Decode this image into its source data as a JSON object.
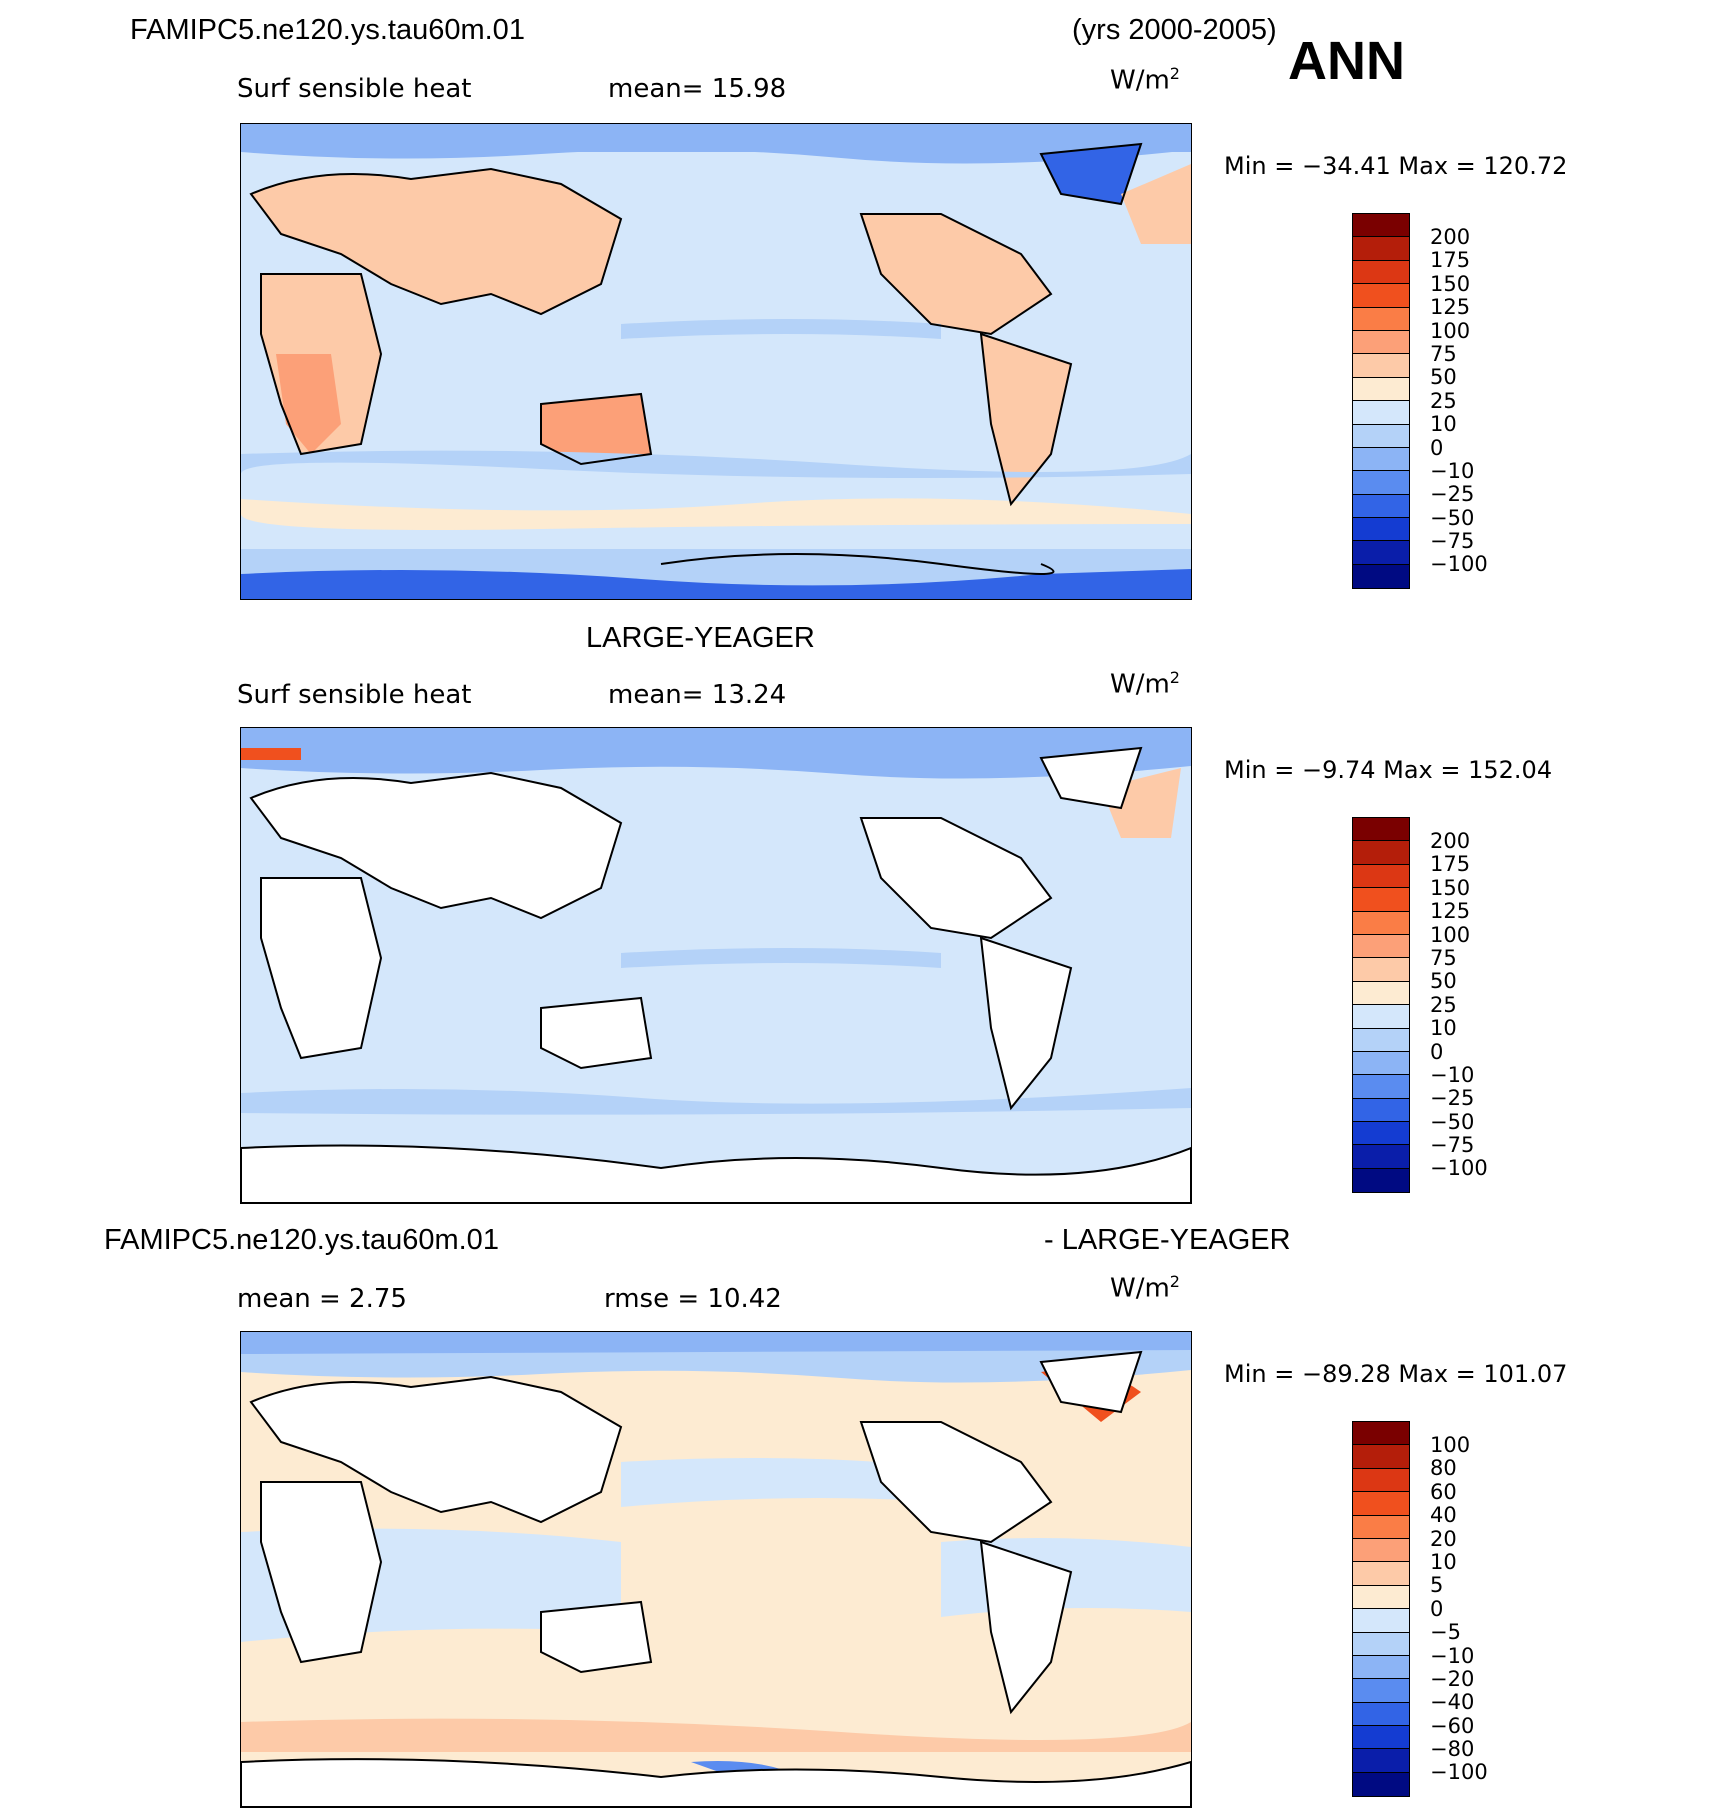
{
  "header": {
    "case_name": "FAMIPC5.ne120.ys.tau60m.01",
    "years": "(yrs 2000-2005)",
    "season": "ANN"
  },
  "panels": [
    {
      "id": "model",
      "title": "",
      "variable": "Surf sensible heat",
      "stat": "mean=   15.98",
      "units": "W/m",
      "units_exp": "2",
      "minmax": "Min  =  −34.41  Max  =  120.72",
      "colorbar_labels": [
        "200",
        "175",
        "150",
        "125",
        "100",
        "75",
        "50",
        "25",
        "10",
        "0",
        "−10",
        "−25",
        "−50",
        "−75",
        "−100"
      ]
    },
    {
      "id": "obs",
      "title": "LARGE-YEAGER",
      "variable": "Surf sensible heat",
      "stat": "mean=   13.24",
      "units": "W/m",
      "units_exp": "2",
      "minmax": "Min  =    −9.74  Max  =  152.04",
      "colorbar_labels": [
        "200",
        "175",
        "150",
        "125",
        "100",
        "75",
        "50",
        "25",
        "10",
        "0",
        "−10",
        "−25",
        "−50",
        "−75",
        "−100"
      ]
    },
    {
      "id": "diff",
      "title_left": "FAMIPC5.ne120.ys.tau60m.01",
      "title_right": "- LARGE-YEAGER",
      "variable": "mean  =     2.75",
      "stat": "rmse  =    10.42",
      "units": "W/m",
      "units_exp": "2",
      "minmax": "Min  =  −89.28  Max  =  101.07",
      "colorbar_labels": [
        "100",
        "80",
        "60",
        "40",
        "20",
        "10",
        "5",
        "0",
        "−5",
        "−10",
        "−20",
        "−40",
        "−60",
        "−80",
        "−100"
      ]
    }
  ],
  "colors": {
    "palette": [
      "#7a0000",
      "#b41e0a",
      "#dc3714",
      "#f0501e",
      "#fa7d46",
      "#fca078",
      "#fdcaa8",
      "#fdebd2",
      "#d4e7fb",
      "#b4d2f8",
      "#8cb4f5",
      "#5a8cf0",
      "#3264e6",
      "#143cd2",
      "#0a1eaa",
      "#000a82"
    ],
    "coast": "#000000",
    "land_blank": "#ffffff"
  }
}
